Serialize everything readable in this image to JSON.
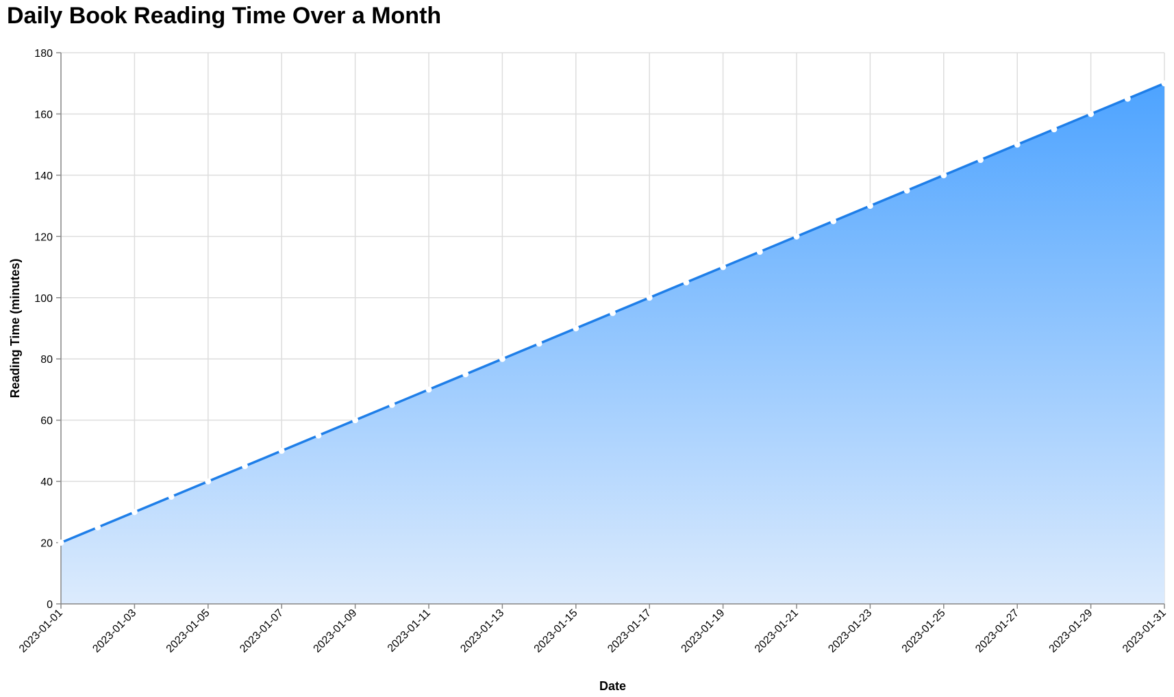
{
  "chart_data": {
    "type": "area",
    "title": "Daily Book Reading Time Over a Month",
    "xlabel": "Date",
    "ylabel": "Reading Time (minutes)",
    "ylim": [
      0,
      180
    ],
    "yticks": [
      0,
      20,
      40,
      60,
      80,
      100,
      120,
      140,
      160,
      180
    ],
    "xticks": [
      "2023-01-01",
      "2023-01-03",
      "2023-01-05",
      "2023-01-07",
      "2023-01-09",
      "2023-01-11",
      "2023-01-13",
      "2023-01-15",
      "2023-01-17",
      "2023-01-19",
      "2023-01-21",
      "2023-01-23",
      "2023-01-25",
      "2023-01-27",
      "2023-01-29",
      "2023-01-31"
    ],
    "grid": true,
    "legend": "none",
    "colors": {
      "line": "#1e7ee8",
      "area_top": "#4da3ff",
      "area_bottom": "#dcebfd",
      "point_fill": "#ffffff"
    },
    "x": [
      "2023-01-01",
      "2023-01-02",
      "2023-01-03",
      "2023-01-04",
      "2023-01-05",
      "2023-01-06",
      "2023-01-07",
      "2023-01-08",
      "2023-01-09",
      "2023-01-10",
      "2023-01-11",
      "2023-01-12",
      "2023-01-13",
      "2023-01-14",
      "2023-01-15",
      "2023-01-16",
      "2023-01-17",
      "2023-01-18",
      "2023-01-19",
      "2023-01-20",
      "2023-01-21",
      "2023-01-22",
      "2023-01-23",
      "2023-01-24",
      "2023-01-25",
      "2023-01-26",
      "2023-01-27",
      "2023-01-28",
      "2023-01-29",
      "2023-01-30",
      "2023-01-31"
    ],
    "series": [
      {
        "values": [
          20,
          25,
          30,
          35,
          40,
          45,
          50,
          55,
          60,
          65,
          70,
          75,
          80,
          85,
          90,
          95,
          100,
          105,
          110,
          115,
          120,
          125,
          130,
          135,
          140,
          145,
          150,
          155,
          160,
          165,
          170
        ]
      }
    ]
  }
}
